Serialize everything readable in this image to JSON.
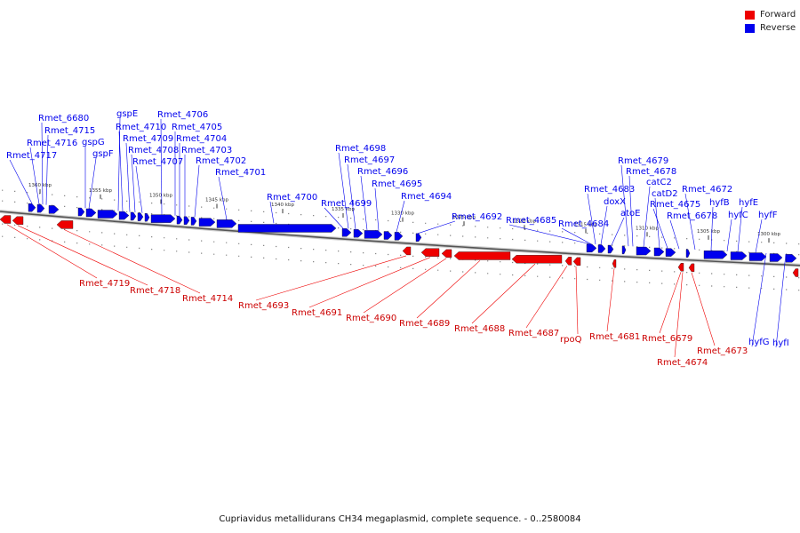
{
  "legend": [
    {
      "label": "Forward",
      "color": "#ee0000"
    },
    {
      "label": "Reverse",
      "color": "#0000ee"
    }
  ],
  "caption": "Cupriavidus metallidurans CH34 megaplasmid, complete sequence. - 0..2580084",
  "colors": {
    "forward": "#ee0000",
    "reverse": "#0000ee",
    "backbone": "#555555"
  },
  "scale_labels": [
    "1360 kbp",
    "1355 kbp",
    "1350 kbp",
    "1345 kbp",
    "1340 kbp",
    "1335 kbp",
    "1330 kbp",
    "1325 kbp",
    "1320 kbp",
    "1315 kbp",
    "1310 kbp",
    "1305 kbp",
    "1300 kbp"
  ],
  "reverse_labels": [
    "Rmet_6680",
    "Rmet_4715",
    "Rmet_4716",
    "Rmet_4717",
    "gspE",
    "Rmet_4710",
    "gspG",
    "gspF",
    "Rmet_4709",
    "Rmet_4708",
    "Rmet_4707",
    "Rmet_4706",
    "Rmet_4705",
    "Rmet_4704",
    "Rmet_4703",
    "Rmet_4702",
    "Rmet_4701",
    "Rmet_4700",
    "Rmet_4698",
    "Rmet_4697",
    "Rmet_4696",
    "Rmet_4695",
    "Rmet_4699",
    "Rmet_4694",
    "Rmet_4692",
    "Rmet_4685",
    "Rmet_4684",
    "Rmet_4683",
    "doxX",
    "atoE",
    "Rmet_4679",
    "Rmet_4678",
    "catC2",
    "catD2",
    "Rmet_4675",
    "Rmet_6678",
    "Rmet_4672",
    "hyfB",
    "hyfC",
    "hyfE",
    "hyfF",
    "hyfG",
    "hyfI"
  ],
  "forward_labels": [
    "Rmet_4719",
    "Rmet_4718",
    "Rmet_4714",
    "Rmet_4693",
    "Rmet_4691",
    "Rmet_4690",
    "Rmet_4689",
    "Rmet_4688",
    "Rmet_4687",
    "rpoQ",
    "Rmet_4681",
    "Rmet_6679",
    "Rmet_4674",
    "Rmet_4673"
  ]
}
